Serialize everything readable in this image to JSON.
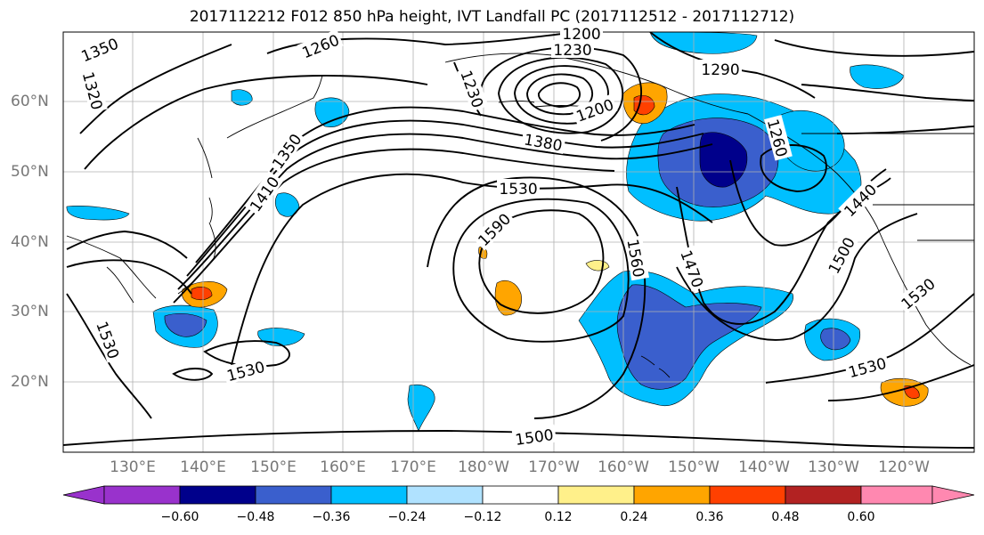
{
  "title": "2017112212 F012 850 hPa height, IVT Landfall PC (2017112512 - 2017112712)",
  "lat_ticks": [
    "60°N",
    "50°N",
    "40°N",
    "30°N",
    "20°N"
  ],
  "lon_ticks": [
    "130°E",
    "140°E",
    "150°E",
    "160°E",
    "170°E",
    "180°W",
    "170°W",
    "160°W",
    "150°W",
    "140°W",
    "130°W",
    "120°W"
  ],
  "contour_labels": [
    "1350",
    "1320",
    "1260",
    "1200",
    "1230",
    "1290",
    "1230",
    "1200",
    "1380",
    "1350",
    "1410",
    "1530",
    "1590",
    "1560",
    "1470",
    "1260",
    "1440",
    "1500",
    "1530",
    "1530",
    "1530",
    "1500"
  ],
  "colorbar": {
    "ticks": [
      "−0.60",
      "−0.48",
      "−0.36",
      "−0.24",
      "−0.12",
      "0.12",
      "0.24",
      "0.36",
      "0.48",
      "0.60"
    ],
    "colors": [
      "#9932cc",
      "#00008b",
      "#3a5fcd",
      "#00bfff",
      "#b0e2ff",
      "#ffffff",
      "#fff08a",
      "#ffa500",
      "#ff4000",
      "#b22222",
      "#ff88b0"
    ]
  }
}
